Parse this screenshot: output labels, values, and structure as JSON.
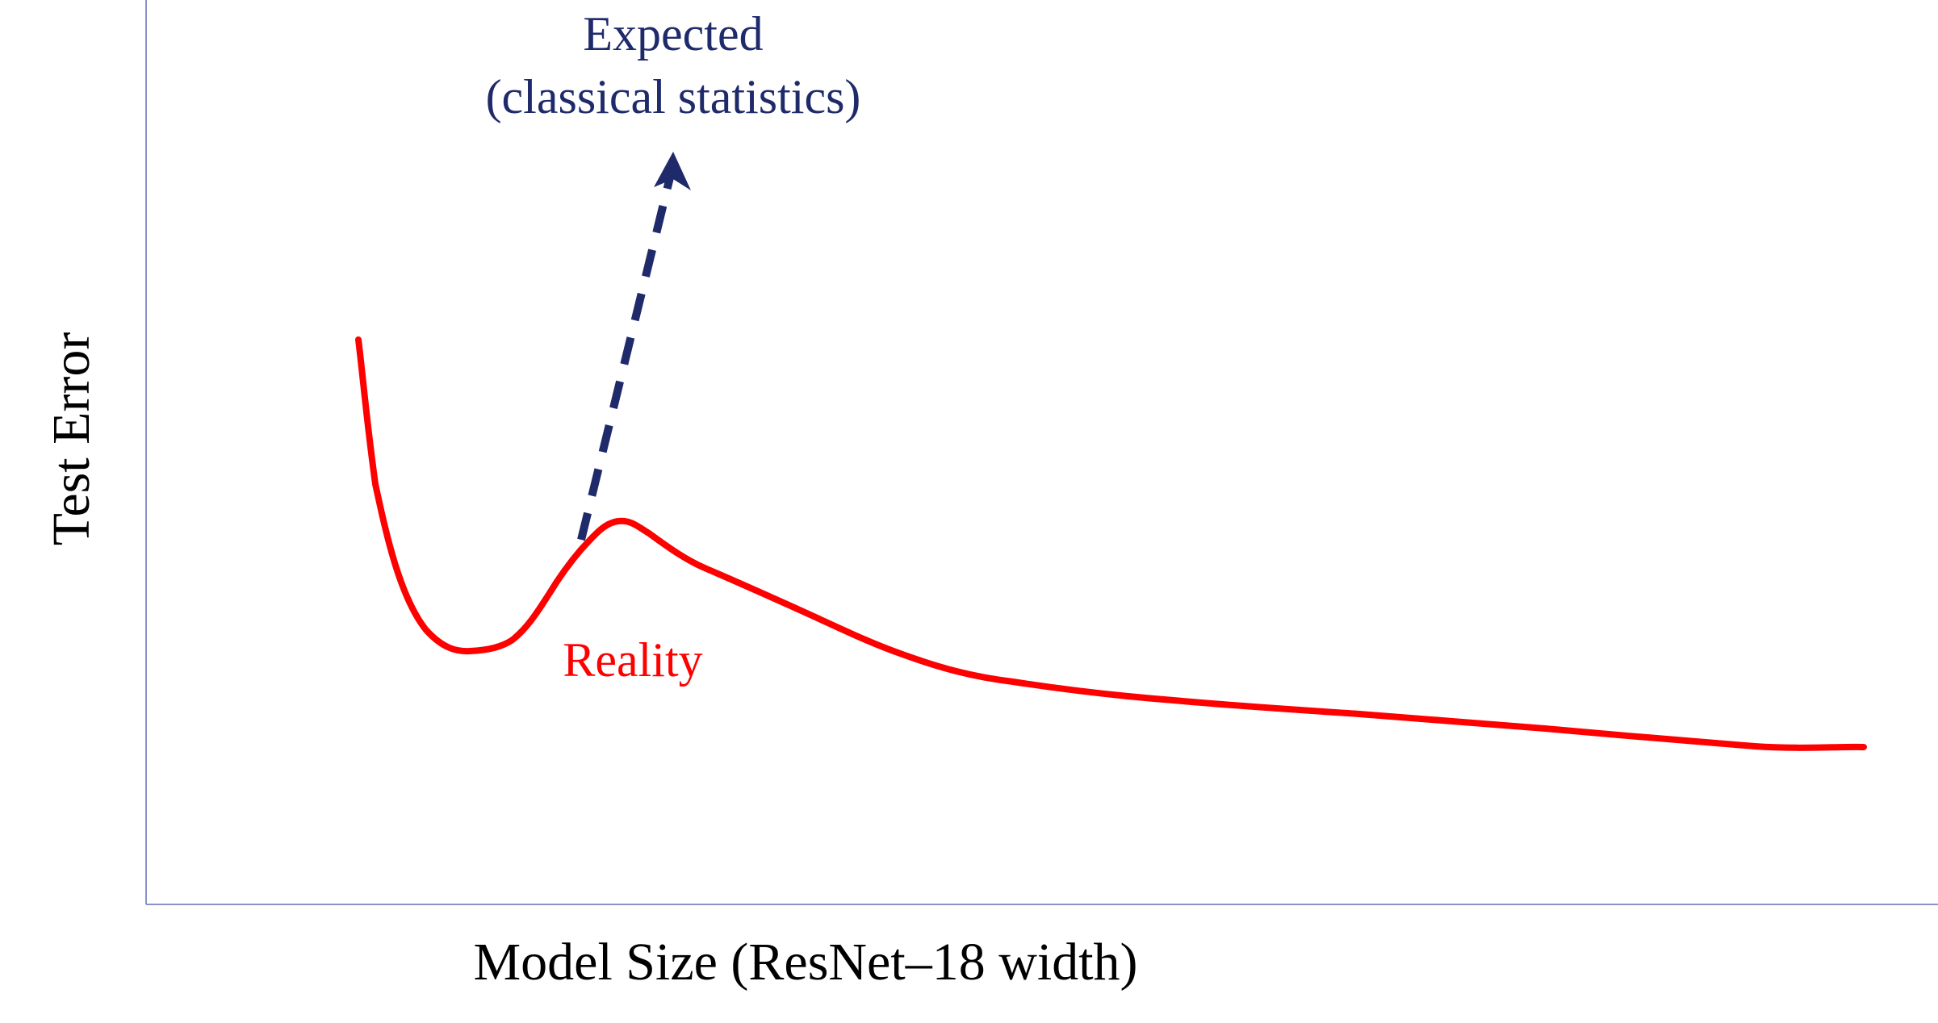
{
  "axes": {
    "x_label": "Model Size (ResNet–18 width)",
    "y_label": "Test Error"
  },
  "annotations": {
    "expected": "Expected",
    "expected_note": "(classical statistics)",
    "reality": "Reality"
  }
}
